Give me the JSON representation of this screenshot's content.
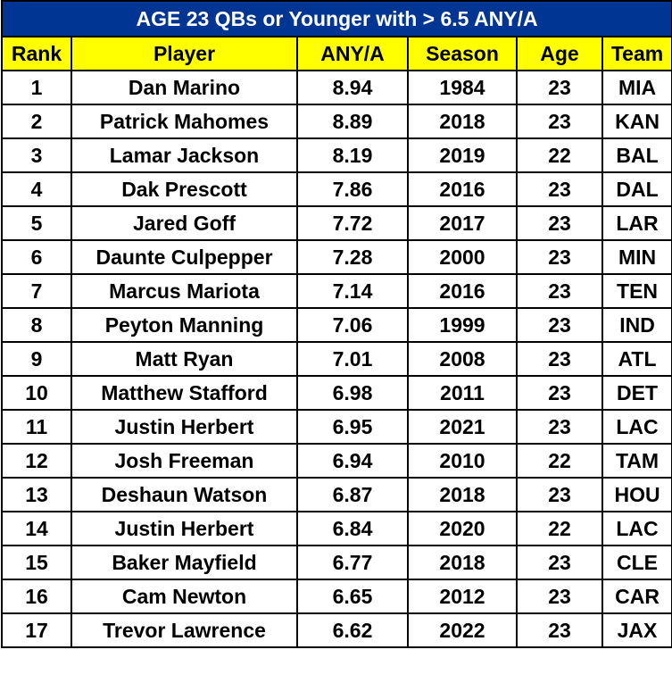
{
  "title": "AGE 23 QBs or Younger with > 6.5 ANY/A",
  "columns": [
    "Rank",
    "Player",
    "ANY/A",
    "Season",
    "Age",
    "Team"
  ],
  "colors": {
    "title_bg": "#003594",
    "title_text": "#ffffff",
    "header_bg": "#ffff00",
    "border": "#000000"
  },
  "rows": [
    {
      "rank": "1",
      "player": "Dan Marino",
      "anya": "8.94",
      "season": "1984",
      "age": "23",
      "team": "MIA"
    },
    {
      "rank": "2",
      "player": "Patrick Mahomes",
      "anya": "8.89",
      "season": "2018",
      "age": "23",
      "team": "KAN"
    },
    {
      "rank": "3",
      "player": "Lamar Jackson",
      "anya": "8.19",
      "season": "2019",
      "age": "22",
      "team": "BAL"
    },
    {
      "rank": "4",
      "player": "Dak Prescott",
      "anya": "7.86",
      "season": "2016",
      "age": "23",
      "team": "DAL"
    },
    {
      "rank": "5",
      "player": "Jared Goff",
      "anya": "7.72",
      "season": "2017",
      "age": "23",
      "team": "LAR"
    },
    {
      "rank": "6",
      "player": "Daunte Culpepper",
      "anya": "7.28",
      "season": "2000",
      "age": "23",
      "team": "MIN"
    },
    {
      "rank": "7",
      "player": "Marcus Mariota",
      "anya": "7.14",
      "season": "2016",
      "age": "23",
      "team": "TEN"
    },
    {
      "rank": "8",
      "player": "Peyton Manning",
      "anya": "7.06",
      "season": "1999",
      "age": "23",
      "team": "IND"
    },
    {
      "rank": "9",
      "player": "Matt Ryan",
      "anya": "7.01",
      "season": "2008",
      "age": "23",
      "team": "ATL"
    },
    {
      "rank": "10",
      "player": "Matthew Stafford",
      "anya": "6.98",
      "season": "2011",
      "age": "23",
      "team": "DET"
    },
    {
      "rank": "11",
      "player": "Justin Herbert",
      "anya": "6.95",
      "season": "2021",
      "age": "23",
      "team": "LAC"
    },
    {
      "rank": "12",
      "player": "Josh Freeman",
      "anya": "6.94",
      "season": "2010",
      "age": "22",
      "team": "TAM"
    },
    {
      "rank": "13",
      "player": "Deshaun Watson",
      "anya": "6.87",
      "season": "2018",
      "age": "23",
      "team": "HOU"
    },
    {
      "rank": "14",
      "player": "Justin Herbert",
      "anya": "6.84",
      "season": "2020",
      "age": "22",
      "team": "LAC"
    },
    {
      "rank": "15",
      "player": "Baker Mayfield",
      "anya": "6.77",
      "season": "2018",
      "age": "23",
      "team": "CLE"
    },
    {
      "rank": "16",
      "player": "Cam Newton",
      "anya": "6.65",
      "season": "2012",
      "age": "23",
      "team": "CAR"
    },
    {
      "rank": "17",
      "player": "Trevor Lawrence",
      "anya": "6.62",
      "season": "2022",
      "age": "23",
      "team": "JAX"
    }
  ]
}
